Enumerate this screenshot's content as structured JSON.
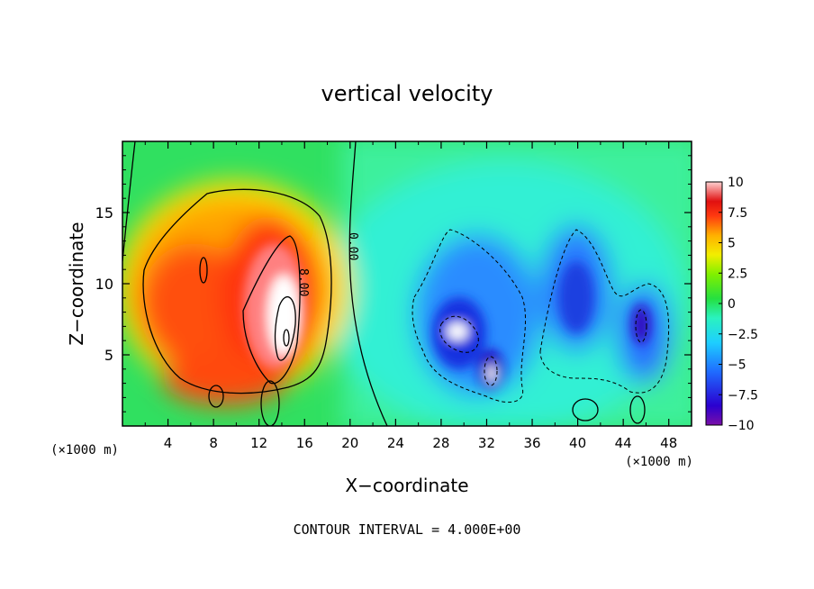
{
  "chart_data": {
    "type": "heatmap",
    "title": "vertical velocity",
    "xlabel": "X−coordinate",
    "ylabel": "Z−coordinate",
    "x_unit": "(×1000 m)",
    "y_unit": "(×1000 m)",
    "xlim": [
      0,
      50
    ],
    "ylim": [
      0,
      20
    ],
    "x_ticks": [
      4,
      8,
      12,
      16,
      20,
      24,
      28,
      32,
      36,
      40,
      44,
      48
    ],
    "y_ticks": [
      5,
      10,
      15
    ],
    "colorbar": {
      "range": [
        -10,
        10
      ],
      "tick_values": [
        10,
        7.5,
        5,
        2.5,
        0,
        -2.5,
        -5,
        -7.5,
        -10
      ],
      "tick_labels": [
        "10",
        "7.5",
        "5",
        "2.5",
        "0",
        "−2.5",
        "−5",
        "−7.5",
        "−10"
      ]
    },
    "contour_labels": [
      {
        "text": "0.00",
        "x": 20,
        "z": 12.8
      },
      {
        "text": "8.00",
        "x": 15.5,
        "z": 10
      }
    ],
    "features": [
      {
        "type": "updraft",
        "x": 14.5,
        "z": 6.5,
        "peak": 10
      },
      {
        "type": "updraft",
        "x": 7,
        "z": 9.5,
        "peak": 8
      },
      {
        "type": "updraft",
        "x": 10,
        "z": 4,
        "peak": 8
      },
      {
        "type": "downdraft",
        "x": 29.5,
        "z": 6.5,
        "peak": -10
      },
      {
        "type": "downdraft",
        "x": 32.5,
        "z": 3.5,
        "peak": -9
      },
      {
        "type": "downdraft",
        "x": 45.5,
        "z": 7,
        "peak": -8
      },
      {
        "type": "downdraft",
        "x": 40,
        "z": 9.5,
        "peak": -6
      }
    ]
  },
  "footer": {
    "contour_interval": "CONTOUR INTERVAL = 4.000E+00"
  }
}
